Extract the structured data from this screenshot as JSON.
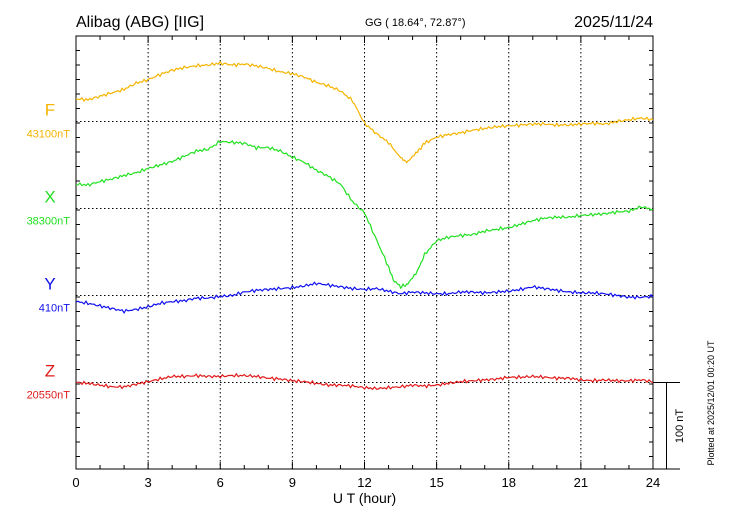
{
  "chart_data": {
    "type": "line",
    "station": "Alibag (ABG)  [IIG]",
    "coords_label": "GG ( 18.64°,  72.87°)",
    "date": "2025/11/24",
    "xlabel": "U T (hour)",
    "xlim": [
      0,
      24
    ],
    "xticks": [
      "0",
      "3",
      "6",
      "9",
      "12",
      "15",
      "18",
      "21",
      "24"
    ],
    "y_scale_nT_per_row": 100,
    "scale_bar_label": "100 nT",
    "plotted_label": "Plotted at 2025/12/01 00:20 UT",
    "grid": true,
    "series": [
      {
        "name": "F",
        "baseline_label": "43100nT",
        "baseline_nT": 43100,
        "color": "#f5b400",
        "x": [
          0,
          0.5,
          1,
          1.5,
          2,
          2.5,
          3,
          3.5,
          4,
          4.5,
          5,
          5.5,
          6,
          6.5,
          7,
          7.5,
          8,
          8.5,
          9,
          9.5,
          10,
          10.5,
          11,
          11.5,
          12,
          12.5,
          13,
          13.5,
          13.8,
          14.2,
          14.5,
          15,
          15.5,
          16,
          16.5,
          17,
          17.5,
          18,
          18.5,
          19,
          19.5,
          20,
          20.5,
          21,
          21.5,
          22,
          22.5,
          23,
          23.5,
          24
        ],
        "values": [
          43126,
          43125,
          43129,
          43133,
          43137,
          43144,
          43148,
          43154,
          43159,
          43162,
          43164,
          43165,
          43167,
          43165,
          43166,
          43164,
          43161,
          43157,
          43155,
          43151,
          43145,
          43141,
          43135,
          43124,
          43098,
          43086,
          43076,
          43058,
          43053,
          43065,
          43075,
          43082,
          43085,
          43087,
          43090,
          43092,
          43094,
          43095,
          43096,
          43097,
          43097,
          43096,
          43096,
          43097,
          43098,
          43097,
          43100,
          43102,
          43104,
          43102
        ]
      },
      {
        "name": "X",
        "baseline_label": "38300nT",
        "baseline_nT": 38300,
        "color": "#22e022",
        "x": [
          0,
          0.5,
          1,
          1.5,
          2,
          2.5,
          3,
          3.5,
          4,
          4.5,
          5,
          5.5,
          6,
          6.5,
          7,
          7.5,
          8,
          8.5,
          9,
          9.5,
          10,
          10.5,
          11,
          11.5,
          12,
          12.5,
          13,
          13.2,
          13.5,
          13.8,
          14.2,
          14.5,
          15,
          15.5,
          16,
          16.5,
          17,
          17.5,
          18,
          18.5,
          19,
          19.5,
          20,
          20.5,
          21,
          21.5,
          22,
          22.5,
          23,
          23.5,
          24
        ],
        "values": [
          38328,
          38327,
          38331,
          38334,
          38338,
          38341,
          38346,
          38350,
          38354,
          38360,
          38366,
          38368,
          38377,
          38376,
          38375,
          38370,
          38370,
          38366,
          38359,
          38353,
          38344,
          38337,
          38328,
          38308,
          38295,
          38264,
          38233,
          38218,
          38210,
          38213,
          38228,
          38247,
          38263,
          38267,
          38269,
          38270,
          38274,
          38276,
          38278,
          38282,
          38286,
          38289,
          38290,
          38290,
          38292,
          38293,
          38294,
          38296,
          38297,
          38302,
          38299
        ]
      },
      {
        "name": "Y",
        "baseline_label": "410nT",
        "baseline_nT": 410,
        "color": "#1010ee",
        "x": [
          0,
          0.5,
          1,
          1.5,
          2,
          2.5,
          3,
          3.5,
          4,
          4.5,
          5,
          5.5,
          6,
          6.5,
          7,
          7.5,
          8,
          8.5,
          9,
          9.5,
          10,
          10.5,
          11,
          11.5,
          12,
          12.5,
          13,
          13.5,
          14,
          14.5,
          15,
          15.5,
          16,
          16.5,
          17,
          17.5,
          18,
          18.5,
          19,
          19.5,
          20,
          20.5,
          21,
          21.5,
          22,
          22.5,
          23,
          23.5,
          24
        ],
        "values": [
          403,
          401,
          398,
          395,
          392,
          394,
          397,
          401,
          403,
          404,
          407,
          407,
          409,
          410,
          414,
          416,
          417,
          418,
          419,
          421,
          424,
          422,
          420,
          418,
          417,
          418,
          415,
          412,
          414,
          413,
          412,
          412,
          414,
          414,
          413,
          414,
          415,
          417,
          420,
          418,
          416,
          414,
          413,
          413,
          412,
          410,
          408,
          408,
          409
        ]
      },
      {
        "name": "Z",
        "baseline_label": "20550nT",
        "baseline_nT": 20550,
        "color": "#e01a1a",
        "x": [
          0,
          0.5,
          1,
          1.5,
          2,
          2.5,
          3,
          3.5,
          4,
          4.5,
          5,
          5.5,
          6,
          6.5,
          7,
          7.5,
          8,
          8.5,
          9,
          9.5,
          10,
          10.5,
          11,
          11.5,
          12,
          12.5,
          13,
          13.5,
          14,
          14.5,
          15,
          15.5,
          16,
          16.5,
          17,
          17.5,
          18,
          18.5,
          19,
          19.5,
          20,
          20.5,
          21,
          21.5,
          22,
          22.5,
          23,
          23.5,
          24
        ],
        "values": [
          20550,
          20549,
          20547,
          20545,
          20545,
          20548,
          20551,
          20554,
          20557,
          20557,
          20558,
          20557,
          20557,
          20558,
          20558,
          20557,
          20555,
          20554,
          20552,
          20551,
          20549,
          20547,
          20547,
          20546,
          20544,
          20543,
          20544,
          20545,
          20547,
          20546,
          20547,
          20549,
          20551,
          20552,
          20553,
          20554,
          20556,
          20556,
          20557,
          20556,
          20555,
          20555,
          20553,
          20552,
          20553,
          20552,
          20552,
          20553,
          20551
        ]
      }
    ]
  }
}
